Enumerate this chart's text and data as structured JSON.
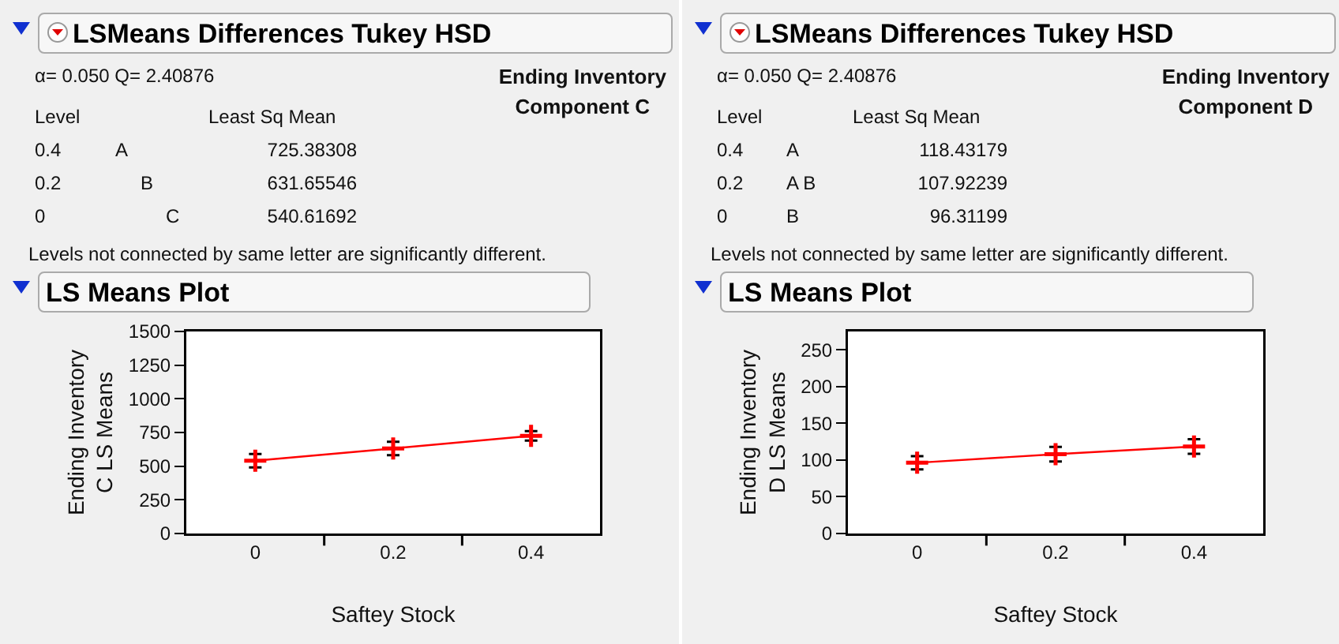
{
  "chart_data": [
    {
      "type": "line",
      "title": "LSMeans Differences Tukey HSD",
      "subtitle": "LS Means Plot",
      "xlabel": "Saftey Stock",
      "ylabel": "Ending Inventory\nC LS Means",
      "categories": [
        "0",
        "0.2",
        "0.4"
      ],
      "series": [
        {
          "color": "#ff0000",
          "values": [
            540.61692,
            631.65546,
            725.38308
          ],
          "errors": [
            50,
            50,
            35
          ]
        }
      ],
      "ylim": [
        0,
        1500
      ],
      "yticks": [
        0,
        250,
        500,
        750,
        1000,
        1250,
        1500
      ],
      "grid": false,
      "marker": "cross",
      "line_style": "solid",
      "annotations": [
        "α= 0.050   Q= 2.40876",
        "Ending Inventory\nComponent C",
        "Level",
        "Least Sq Mean",
        "A",
        "B",
        "C",
        "Levels not connected by same letter are significantly different.",
        "725.38308",
        "631.65546",
        "540.61692"
      ]
    },
    {
      "type": "line",
      "title": "LSMeans Differences Tukey HSD",
      "subtitle": "LS Means Plot",
      "xlabel": "Saftey Stock",
      "ylabel": "Ending Inventory\nD LS Means",
      "categories": [
        "0",
        "0.2",
        "0.4"
      ],
      "series": [
        {
          "color": "#ff0000",
          "values": [
            96.31199,
            107.92239,
            118.43179
          ],
          "errors": [
            9,
            10,
            10
          ]
        }
      ],
      "ylim": [
        0,
        275
      ],
      "yticks": [
        0,
        50,
        100,
        150,
        200,
        250
      ],
      "grid": false,
      "marker": "cross",
      "line_style": "solid",
      "annotations": [
        "α= 0.050   Q= 2.40876",
        "Ending Inventory\nComponent D",
        "Level",
        "Least Sq Mean",
        "A",
        "A B",
        "B",
        "Levels not connected by same letter are significantly different.",
        "118.43179",
        "107.92239",
        "96.31199"
      ]
    }
  ]
}
